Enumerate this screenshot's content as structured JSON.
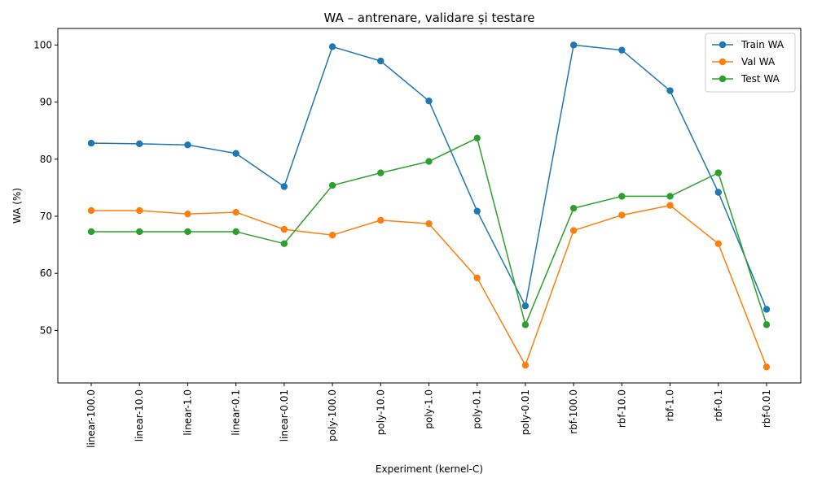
{
  "chart_data": {
    "type": "line",
    "title": "WA – antrenare, validare și testare",
    "xlabel": "Experiment (kernel-C)",
    "ylabel": "WA (%)",
    "categories": [
      "linear-100.0",
      "linear-10.0",
      "linear-1.0",
      "linear-0.1",
      "linear-0.01",
      "poly-100.0",
      "poly-10.0",
      "poly-1.0",
      "poly-0.1",
      "poly-0.01",
      "rbf-100.0",
      "rbf-10.0",
      "rbf-1.0",
      "rbf-0.1",
      "rbf-0.01"
    ],
    "ylim": [
      40.8,
      102.9
    ],
    "yticks": [
      50,
      60,
      70,
      80,
      90,
      100
    ],
    "grid": false,
    "legend_position": "top-right",
    "series": [
      {
        "name": "Train WA",
        "color": "#1f77b4",
        "values": [
          82.8,
          82.7,
          82.5,
          81.0,
          75.2,
          99.7,
          97.2,
          90.2,
          70.9,
          54.3,
          100.0,
          99.1,
          92.0,
          74.2,
          53.7
        ]
      },
      {
        "name": "Val WA",
        "color": "#ff7f0e",
        "values": [
          71.0,
          71.0,
          70.4,
          70.7,
          67.7,
          66.7,
          69.3,
          68.7,
          59.2,
          43.9,
          67.5,
          70.2,
          71.9,
          65.2,
          43.6
        ]
      },
      {
        "name": "Test WA",
        "color": "#2ca02c",
        "values": [
          67.3,
          67.3,
          67.3,
          67.3,
          65.2,
          75.4,
          77.6,
          79.6,
          83.7,
          51.0,
          71.4,
          73.5,
          73.5,
          77.6,
          51.0
        ]
      }
    ]
  }
}
